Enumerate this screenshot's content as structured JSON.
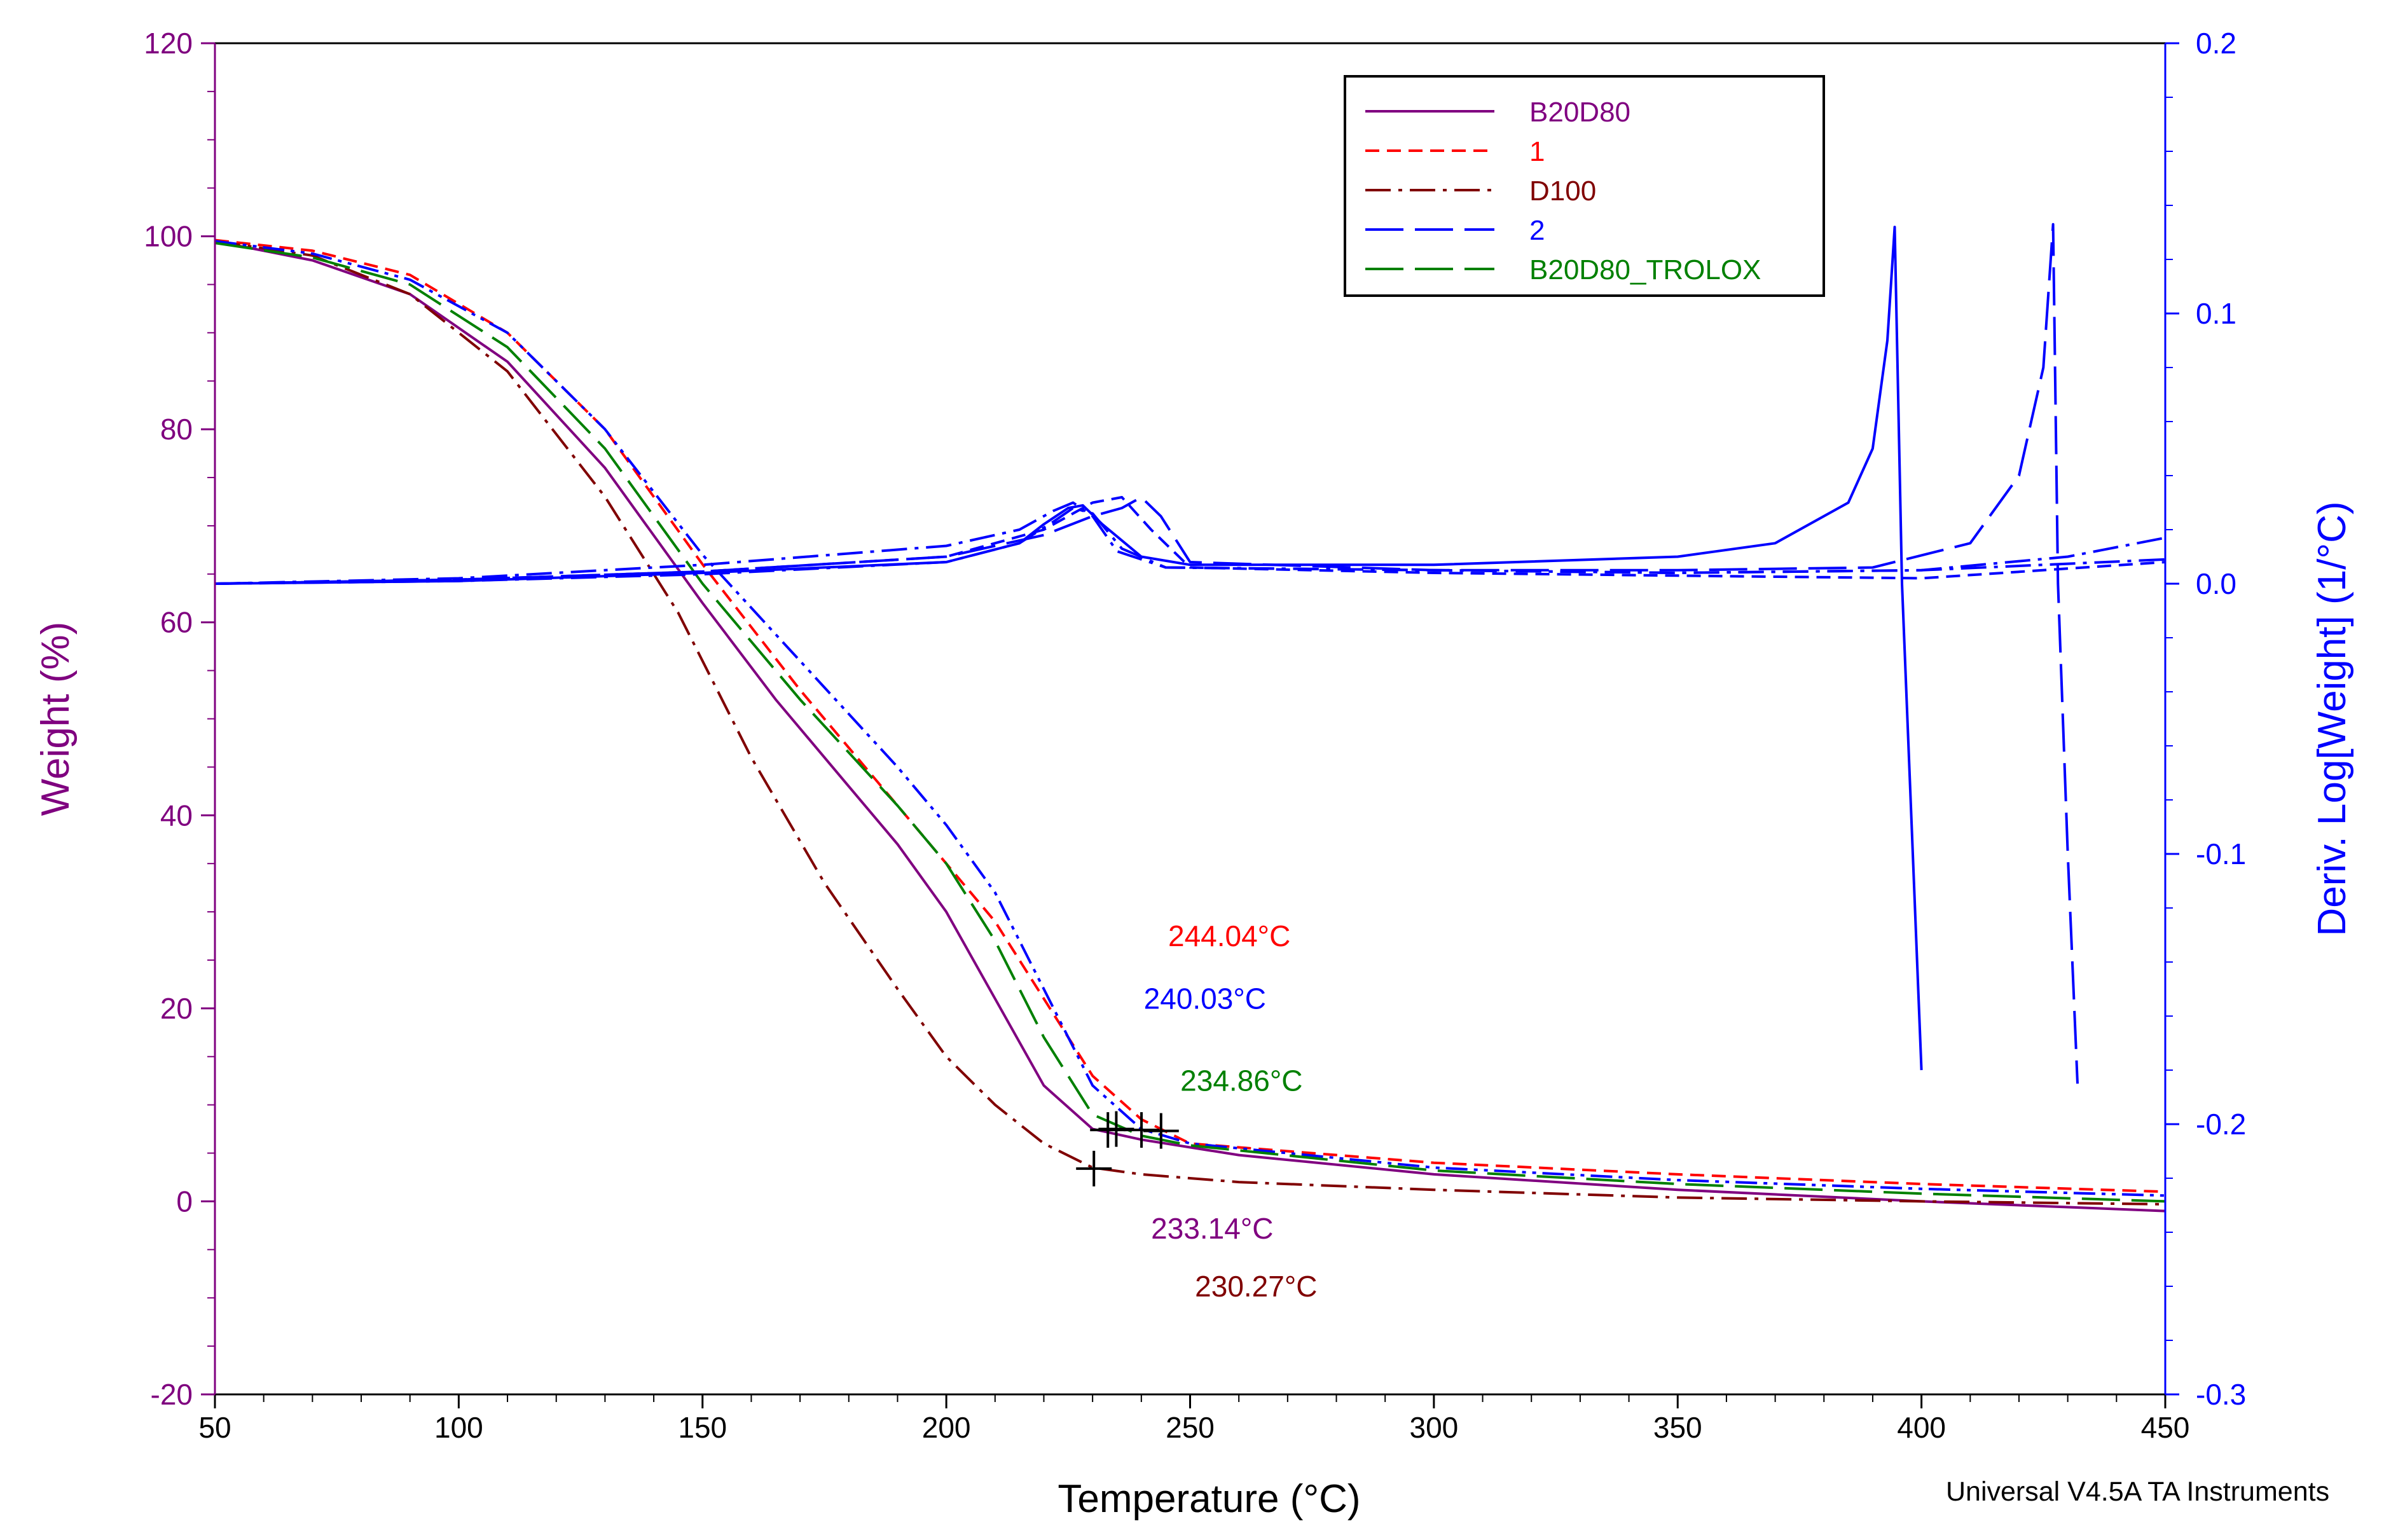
{
  "chart_data": {
    "type": "line",
    "title": "",
    "xlabel": "Temperature (°C)",
    "ylabel_left": "Weight (%)",
    "ylabel_right": "Deriv. Log[Weight] (1/°C)",
    "xlim": [
      50,
      450
    ],
    "ylim_left": [
      -20,
      120
    ],
    "ylim_right": [
      -0.3,
      0.2
    ],
    "x_ticks": [
      50,
      100,
      150,
      200,
      250,
      300,
      350,
      400,
      450
    ],
    "y_left_ticks": [
      -20,
      0,
      20,
      40,
      60,
      80,
      100,
      120
    ],
    "y_right_ticks": [
      -0.3,
      -0.2,
      -0.1,
      0.0,
      0.1,
      0.2
    ],
    "y_right_tick_labels": [
      "-0.3",
      "-0.2",
      "-0.1",
      "0.0",
      "0.1",
      "0.2"
    ],
    "grid": false,
    "legend_position": "top-right",
    "colors": {
      "left_axis": "#7f007f",
      "right_axis": "#0000ff",
      "B20D80": "#800080",
      "1": "#ff0000",
      "D100": "#800000",
      "2": "#0000ff",
      "B20D80_TROLOX": "#008000",
      "marker": "#000000"
    },
    "series": [
      {
        "name": "B20D80",
        "dash": "solid",
        "color": "#800080",
        "axis": "left",
        "x": [
          50,
          70,
          90,
          110,
          130,
          150,
          165,
          180,
          190,
          200,
          210,
          220,
          230,
          240,
          260,
          300,
          350,
          400,
          450
        ],
        "y": [
          99.5,
          97.5,
          94,
          87,
          76,
          62,
          52,
          43,
          37,
          30,
          21,
          12,
          7.5,
          6.4,
          4.8,
          2.8,
          1.2,
          0,
          -1
        ]
      },
      {
        "name": "1",
        "dash": "dash",
        "color": "#ff0000",
        "axis": "left",
        "x": [
          50,
          70,
          90,
          110,
          130,
          150,
          170,
          190,
          210,
          220,
          230,
          240,
          250,
          300,
          350,
          400,
          450
        ],
        "y": [
          99.6,
          98.5,
          96,
          90,
          80,
          66,
          53,
          41,
          29,
          21,
          13,
          8.5,
          6,
          4,
          2.8,
          1.8,
          1
        ]
      },
      {
        "name": "D100",
        "dash": "dashdot",
        "color": "#800000",
        "axis": "left",
        "x": [
          50,
          70,
          90,
          110,
          130,
          145,
          160,
          175,
          190,
          200,
          210,
          220,
          230,
          240,
          260,
          300,
          350,
          400,
          450
        ],
        "y": [
          99.5,
          98,
          94,
          86,
          73,
          61,
          46,
          33,
          22,
          15,
          10,
          6,
          3.5,
          2.8,
          2,
          1.2,
          0.4,
          0,
          -0.3
        ]
      },
      {
        "name": "2",
        "dash": "dashdotdot",
        "color": "#0000ff",
        "axis": "left",
        "x": [
          50,
          70,
          90,
          110,
          130,
          150,
          170,
          190,
          200,
          210,
          220,
          230,
          240,
          250,
          300,
          350,
          400,
          450
        ],
        "y": [
          99.5,
          98.2,
          95.5,
          90,
          80,
          67,
          56,
          45,
          39,
          32,
          22,
          12,
          7.5,
          6,
          3.5,
          2.2,
          1.3,
          0.6
        ]
      },
      {
        "name": "B20D80_TROLOX",
        "dash": "longdash",
        "color": "#008000",
        "axis": "left",
        "x": [
          50,
          70,
          90,
          110,
          130,
          150,
          170,
          190,
          200,
          210,
          220,
          230,
          240,
          250,
          300,
          350,
          400,
          450
        ],
        "y": [
          99.3,
          97.8,
          95,
          88.5,
          78,
          64,
          52,
          41,
          35,
          27,
          17,
          9,
          6.8,
          5.8,
          3.2,
          1.8,
          0.8,
          0
        ]
      },
      {
        "name": "B20D80 deriv",
        "dash": "solid",
        "color": "#0000ff",
        "axis": "right",
        "x": [
          50,
          100,
          150,
          200,
          215,
          220,
          225,
          228,
          232,
          240,
          250,
          300,
          350,
          370,
          385,
          390,
          393,
          394.5,
          396,
          400
        ],
        "y": [
          0.0,
          0.001,
          0.004,
          0.008,
          0.015,
          0.022,
          0.028,
          0.029,
          0.022,
          0.01,
          0.007,
          0.007,
          0.01,
          0.015,
          0.03,
          0.05,
          0.09,
          0.132,
          0.0,
          -0.18
        ]
      },
      {
        "name": "1 deriv",
        "dash": "dash",
        "color": "#0000ff",
        "axis": "right",
        "x": [
          50,
          100,
          150,
          200,
          220,
          230,
          236,
          242,
          250,
          300,
          350,
          400,
          450
        ],
        "y": [
          0.0,
          0.0015,
          0.0045,
          0.01,
          0.02,
          0.03,
          0.032,
          0.02,
          0.006,
          0.004,
          0.003,
          0.002,
          0.008
        ]
      },
      {
        "name": "D100 deriv",
        "dash": "dashdot",
        "color": "#0000ff",
        "axis": "right",
        "x": [
          50,
          100,
          150,
          200,
          215,
          222,
          226,
          230,
          235,
          245,
          300,
          350,
          400,
          430,
          450
        ],
        "y": [
          0.0,
          0.002,
          0.007,
          0.014,
          0.02,
          0.027,
          0.03,
          0.025,
          0.012,
          0.006,
          0.005,
          0.004,
          0.005,
          0.01,
          0.017
        ]
      },
      {
        "name": "2 deriv",
        "dash": "longdash",
        "color": "#0000ff",
        "axis": "right",
        "x": [
          50,
          100,
          150,
          200,
          220,
          230,
          236,
          240,
          244,
          250,
          300,
          350,
          390,
          410,
          420,
          425,
          427,
          428,
          430,
          432
        ],
        "y": [
          0.0,
          0.0015,
          0.0045,
          0.01,
          0.018,
          0.025,
          0.028,
          0.032,
          0.025,
          0.008,
          0.005,
          0.005,
          0.006,
          0.015,
          0.04,
          0.08,
          0.133,
          0.0,
          -0.1,
          -0.185
        ]
      },
      {
        "name": "B20D80_TROLOX deriv",
        "dash": "dashdot",
        "color": "#0000ff",
        "axis": "right",
        "x": [
          50,
          100,
          150,
          200,
          215,
          222,
          226,
          230,
          236,
          245,
          300,
          350,
          400,
          450
        ],
        "y": [
          0.0,
          0.001,
          0.0035,
          0.008,
          0.015,
          0.023,
          0.028,
          0.026,
          0.013,
          0.006,
          0.005,
          0.004,
          0.005,
          0.009
        ]
      }
    ],
    "markers": [
      {
        "x": 230.27,
        "y": 3.4
      },
      {
        "x": 233.14,
        "y": 7.4
      },
      {
        "x": 234.86,
        "y": 7.5
      },
      {
        "x": 240.03,
        "y": 7.4
      },
      {
        "x": 244.04,
        "y": 7.3
      }
    ],
    "annotations": [
      {
        "text": "244.04°C",
        "color": "#ff0000",
        "x": 245.5,
        "y": 27.5
      },
      {
        "text": "240.03°C",
        "color": "#0000ff",
        "x": 240.5,
        "y": 21
      },
      {
        "text": "234.86°C",
        "color": "#008000",
        "x": 248,
        "y": 12.5
      },
      {
        "text": "233.14°C",
        "color": "#800080",
        "x": 242,
        "y": -2.8
      },
      {
        "text": "230.27°C",
        "color": "#800000",
        "x": 251,
        "y": -8.8
      }
    ],
    "legend": [
      {
        "name": "B20D80",
        "color": "#800080",
        "dash": "solid"
      },
      {
        "name": "1",
        "color": "#ff0000",
        "dash": "dash"
      },
      {
        "name": "D100",
        "color": "#800000",
        "dash": "dashdot"
      },
      {
        "name": "2",
        "color": "#0000ff",
        "dash": "longdash"
      },
      {
        "name": "B20D80_TROLOX",
        "color": "#008000",
        "dash": "longdash"
      }
    ]
  },
  "footer": "Universal V4.5A TA Instruments"
}
